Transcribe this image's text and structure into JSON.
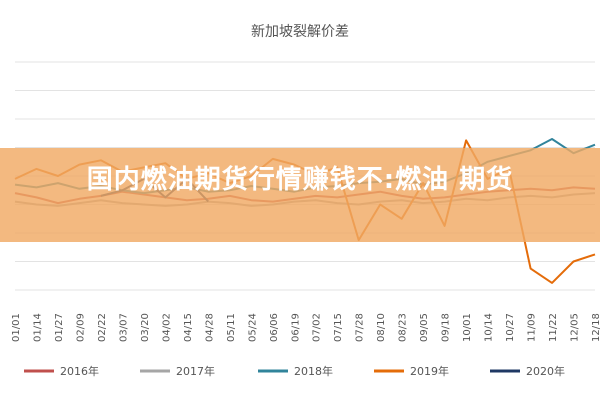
{
  "overlay": {
    "headline": "国内燃油期货行情赚钱不:燃油 期货"
  },
  "chart_data": {
    "type": "line",
    "title": "新加坡裂解价差",
    "xlabel": "",
    "ylabel": "",
    "grid": true,
    "legend_position": "bottom",
    "x_ticks": [
      "01/01",
      "01/14",
      "01/27",
      "02/09",
      "02/22",
      "03/07",
      "03/20",
      "04/02",
      "04/15",
      "04/28",
      "05/11",
      "05/24",
      "06/06",
      "06/19",
      "07/02",
      "07/15",
      "07/28",
      "08/10",
      "08/23",
      "09/05",
      "09/18",
      "10/01",
      "10/14",
      "10/27",
      "11/09",
      "11/22",
      "12/05",
      "12/18"
    ],
    "ylim": [
      -4,
      12
    ],
    "series": [
      {
        "name": "2016年",
        "color": "#c0504d",
        "values": [
          2.8,
          2.5,
          2.1,
          2.4,
          2.6,
          2.9,
          2.7,
          2.5,
          2.3,
          2.4,
          2.6,
          2.3,
          2.2,
          2.4,
          2.6,
          2.5,
          2.7,
          2.9,
          2.6,
          2.4,
          2.5,
          2.7,
          2.9,
          3.0,
          3.1,
          3.0,
          3.2,
          3.1
        ]
      },
      {
        "name": "2017年",
        "color": "#a6a6a6",
        "values": [
          2.2,
          2.0,
          1.9,
          2.1,
          2.3,
          2.1,
          2.0,
          1.9,
          2.0,
          2.2,
          2.1,
          1.9,
          2.0,
          2.2,
          2.3,
          2.1,
          2.0,
          2.2,
          2.3,
          2.1,
          2.2,
          2.4,
          2.3,
          2.5,
          2.6,
          2.5,
          2.7,
          2.8
        ]
      },
      {
        "name": "2018年",
        "color": "#31849b",
        "values": [
          3.4,
          3.2,
          3.5,
          3.1,
          3.3,
          3.0,
          2.8,
          3.0,
          3.2,
          2.9,
          3.0,
          3.3,
          3.1,
          2.9,
          3.2,
          3.3,
          3.5,
          3.6,
          3.8,
          3.4,
          3.6,
          4.2,
          5.0,
          5.4,
          5.8,
          6.6,
          5.6,
          6.2
        ]
      },
      {
        "name": "2019年",
        "color": "#e46c0a",
        "values": [
          3.8,
          4.5,
          4.0,
          4.8,
          5.1,
          4.3,
          4.6,
          4.9,
          3.8,
          4.2,
          3.5,
          4.0,
          5.2,
          4.8,
          4.1,
          4.6,
          -0.5,
          2.0,
          1.0,
          3.5,
          0.5,
          6.5,
          3.8,
          4.5,
          -2.5,
          -3.5,
          -2.0,
          -1.5
        ]
      },
      {
        "name": "2020年",
        "color": "#1f3864",
        "values": [
          null,
          null,
          null,
          null,
          2.6,
          3.0,
          3.8,
          2.5,
          3.8,
          2.2,
          null,
          null,
          null,
          null,
          null,
          null,
          null,
          null,
          null,
          null,
          null,
          null,
          null,
          null,
          null,
          null,
          null,
          null
        ]
      }
    ]
  }
}
